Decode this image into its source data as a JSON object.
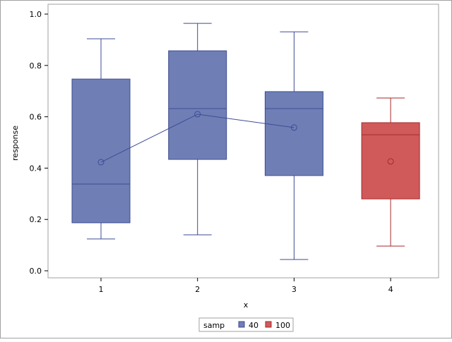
{
  "chart_data": {
    "type": "box",
    "xlabel": "x",
    "ylabel": "response",
    "ylim": [
      0,
      1.0
    ],
    "yticks": [
      "0.0",
      "0.2",
      "0.4",
      "0.6",
      "0.8",
      "1.0"
    ],
    "categories": [
      "1",
      "2",
      "3",
      "4"
    ],
    "boxes": [
      {
        "x": "1",
        "group": "40",
        "min": 0.124,
        "q1": 0.187,
        "median": 0.338,
        "q3": 0.747,
        "max": 0.904,
        "mean": 0.423
      },
      {
        "x": "2",
        "group": "40",
        "min": 0.14,
        "q1": 0.434,
        "median": 0.632,
        "q3": 0.857,
        "max": 0.964,
        "mean": 0.61
      },
      {
        "x": "3",
        "group": "40",
        "min": 0.044,
        "q1": 0.371,
        "median": 0.632,
        "q3": 0.698,
        "max": 0.931,
        "mean": 0.558
      },
      {
        "x": "4",
        "group": "100",
        "min": 0.096,
        "q1": 0.28,
        "median": 0.53,
        "q3": 0.577,
        "max": 0.673,
        "mean": 0.426
      }
    ],
    "mean_line_group": "40",
    "legend": {
      "title": "samp",
      "placement": "bottom",
      "entries": [
        {
          "label": "40",
          "fill": "#6f7fb5",
          "stroke": "#3d4b94"
        },
        {
          "label": "100",
          "fill": "#d05a5a",
          "stroke": "#a52a2a"
        }
      ]
    }
  }
}
